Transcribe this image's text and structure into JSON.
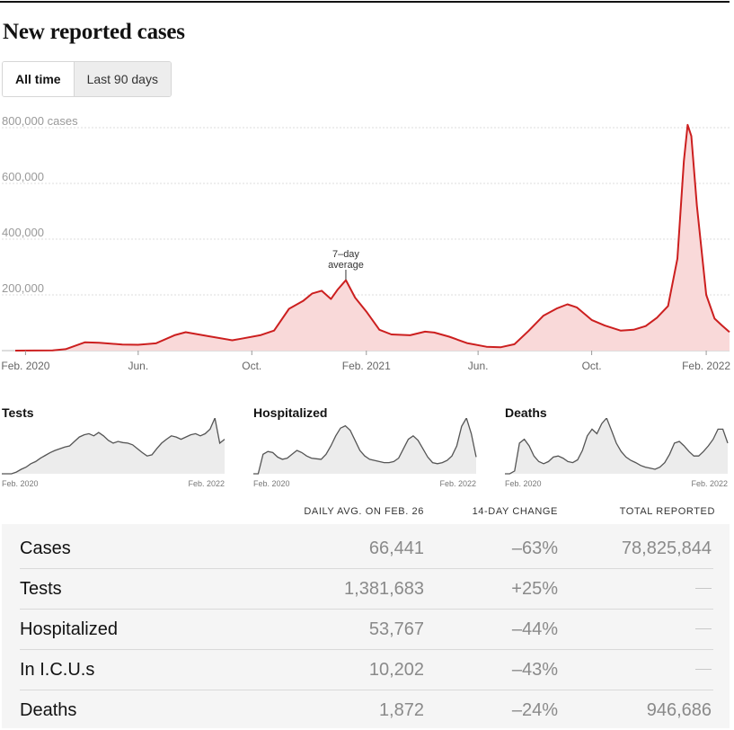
{
  "title": "New reported cases",
  "tabs": [
    {
      "label": "All time",
      "active": true
    },
    {
      "label": "Last 90 days",
      "active": false
    }
  ],
  "colors": {
    "line": "#cc1f1f",
    "area": "#f9d9d9",
    "mini_line": "#555555",
    "mini_area": "#ececec"
  },
  "chart_data": {
    "type": "area",
    "y_unit": "cases",
    "ylim": [
      0,
      800000
    ],
    "yticks": [
      {
        "value": 800000,
        "label": "800,000 cases"
      },
      {
        "value": 600000,
        "label": "600,000"
      },
      {
        "value": 400000,
        "label": "400,000"
      },
      {
        "value": 200000,
        "label": "200,000"
      }
    ],
    "xlim": [
      "2020-01-21",
      "2022-02-26"
    ],
    "xticks": [
      {
        "date": "2020-02-01",
        "label": "Feb. 2020"
      },
      {
        "date": "2020-06-01",
        "label": "Jun."
      },
      {
        "date": "2020-10-01",
        "label": "Oct."
      },
      {
        "date": "2021-02-01",
        "label": "Feb. 2021"
      },
      {
        "date": "2021-06-01",
        "label": "Jun."
      },
      {
        "date": "2021-10-01",
        "label": "Oct."
      },
      {
        "date": "2022-02-01",
        "label": "Feb. 2022"
      }
    ],
    "grid": "horizontal dashed",
    "annotation": {
      "text": [
        "7–day",
        "average"
      ],
      "date": "2021-01-10"
    },
    "series": [
      {
        "x": [
          "2020-01-21",
          "2020-03-01",
          "2020-03-15",
          "2020-04-05",
          "2020-04-20",
          "2020-05-15",
          "2020-06-01",
          "2020-06-20",
          "2020-07-10",
          "2020-07-22",
          "2020-08-15",
          "2020-09-10",
          "2020-09-20",
          "2020-10-10",
          "2020-10-25",
          "2020-11-10",
          "2020-11-25",
          "2020-12-05",
          "2020-12-15",
          "2020-12-25",
          "2021-01-01",
          "2021-01-10",
          "2021-01-20",
          "2021-02-01",
          "2021-02-15",
          "2021-02-28",
          "2021-03-20",
          "2021-04-05",
          "2021-04-15",
          "2021-05-01",
          "2021-05-20",
          "2021-06-10",
          "2021-06-25",
          "2021-07-10",
          "2021-07-25",
          "2021-08-10",
          "2021-08-25",
          "2021-09-05",
          "2021-09-15",
          "2021-10-01",
          "2021-10-15",
          "2021-11-01",
          "2021-11-15",
          "2021-11-28",
          "2021-12-10",
          "2021-12-22",
          "2022-01-01",
          "2022-01-08",
          "2022-01-12",
          "2022-01-16",
          "2022-01-22",
          "2022-02-01",
          "2022-02-10",
          "2022-02-18",
          "2022-02-26"
        ],
        "y": [
          0,
          1000,
          5000,
          30000,
          28000,
          22000,
          21000,
          26000,
          55000,
          66000,
          52000,
          37000,
          43000,
          55000,
          72000,
          150000,
          178000,
          205000,
          215000,
          185000,
          218000,
          253000,
          190000,
          140000,
          75000,
          58000,
          55000,
          68000,
          65000,
          50000,
          27000,
          14000,
          12000,
          23000,
          70000,
          125000,
          152000,
          166000,
          155000,
          110000,
          90000,
          72000,
          75000,
          88000,
          118000,
          160000,
          330000,
          680000,
          810000,
          770000,
          520000,
          200000,
          115000,
          90000,
          66441
        ]
      }
    ]
  },
  "mini_charts": [
    {
      "title": "Tests",
      "x_start": "Feb. 2020",
      "x_end": "Feb. 2022",
      "values": [
        0,
        0,
        0,
        0.03,
        0.08,
        0.12,
        0.18,
        0.22,
        0.28,
        0.33,
        0.38,
        0.42,
        0.45,
        0.48,
        0.5,
        0.58,
        0.66,
        0.7,
        0.72,
        0.68,
        0.74,
        0.68,
        0.6,
        0.55,
        0.58,
        0.56,
        0.55,
        0.52,
        0.45,
        0.38,
        0.32,
        0.34,
        0.45,
        0.55,
        0.62,
        0.68,
        0.66,
        0.62,
        0.66,
        0.7,
        0.72,
        0.68,
        0.72,
        0.8,
        1.0,
        0.55,
        0.62
      ]
    },
    {
      "title": "Hospitalized",
      "x_start": "Feb. 2020",
      "x_end": "Feb. 2022",
      "values": [
        0,
        0,
        0.35,
        0.4,
        0.38,
        0.3,
        0.26,
        0.28,
        0.35,
        0.42,
        0.38,
        0.32,
        0.28,
        0.27,
        0.26,
        0.35,
        0.5,
        0.68,
        0.82,
        0.86,
        0.78,
        0.6,
        0.42,
        0.32,
        0.26,
        0.24,
        0.22,
        0.2,
        0.2,
        0.22,
        0.28,
        0.45,
        0.62,
        0.68,
        0.6,
        0.45,
        0.3,
        0.2,
        0.18,
        0.2,
        0.24,
        0.32,
        0.5,
        0.85,
        1.0,
        0.72,
        0.3
      ]
    },
    {
      "title": "Deaths",
      "x_start": "Feb. 2020",
      "x_end": "Feb. 2022",
      "values": [
        0,
        0,
        0.05,
        0.55,
        0.62,
        0.5,
        0.32,
        0.22,
        0.18,
        0.22,
        0.3,
        0.32,
        0.28,
        0.22,
        0.2,
        0.25,
        0.42,
        0.68,
        0.8,
        0.72,
        0.9,
        1.0,
        0.78,
        0.55,
        0.4,
        0.3,
        0.24,
        0.2,
        0.15,
        0.12,
        0.1,
        0.08,
        0.12,
        0.2,
        0.35,
        0.55,
        0.58,
        0.5,
        0.4,
        0.32,
        0.32,
        0.4,
        0.5,
        0.62,
        0.8,
        0.8,
        0.55
      ]
    }
  ],
  "table": {
    "headers": {
      "daily_avg": "DAILY AVG. ON FEB. 26",
      "change": "14-DAY CHANGE",
      "total": "TOTAL REPORTED"
    },
    "rows": [
      {
        "name": "Cases",
        "daily_avg": "66,441",
        "change": "–63%",
        "total": "78,825,844"
      },
      {
        "name": "Tests",
        "daily_avg": "1,381,683",
        "change": "+25%",
        "total": ""
      },
      {
        "name": "Hospitalized",
        "daily_avg": "53,767",
        "change": "–44%",
        "total": ""
      },
      {
        "name": "In I.C.U.s",
        "daily_avg": "10,202",
        "change": "–43%",
        "total": ""
      },
      {
        "name": "Deaths",
        "daily_avg": "1,872",
        "change": "–24%",
        "total": "946,686"
      }
    ]
  }
}
